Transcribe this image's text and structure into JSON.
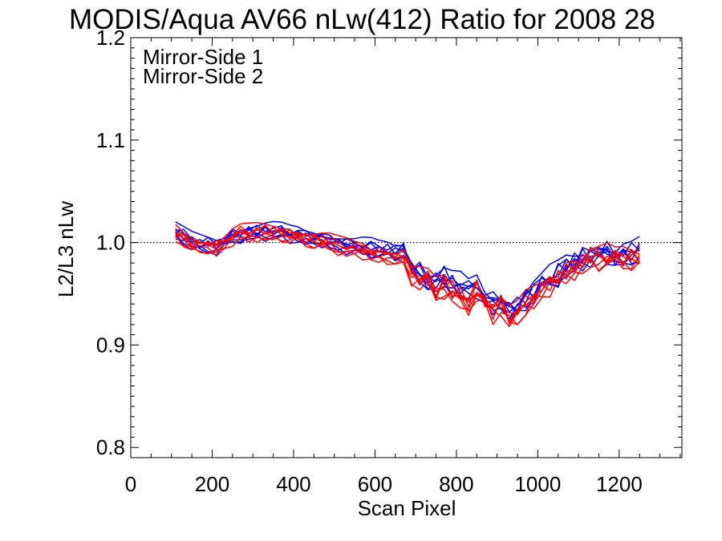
{
  "chart_data": {
    "type": "line",
    "title": "MODIS/Aqua AV66 nLw(412) Ratio for 2008 28",
    "xlabel": "Scan Pixel",
    "ylabel": "L2/L3 nLw",
    "xlim": [
      0,
      1354
    ],
    "ylim": [
      0.79,
      1.2
    ],
    "x_ticks": [
      0,
      200,
      400,
      600,
      800,
      1000,
      1200
    ],
    "x_tick_labels": [
      "0",
      "200",
      "400",
      "600",
      "800",
      "1000",
      "1200"
    ],
    "y_ticks": [
      0.8,
      0.9,
      1.0,
      1.1,
      1.2
    ],
    "y_tick_labels": [
      "0.8",
      "0.9",
      "1.0",
      "1.1",
      "1.2"
    ],
    "reference_line": 1.0,
    "legend_position": "top-left",
    "colors": {
      "ms1": "#0000ff",
      "ms2": "#ff0000",
      "axis": "#000000"
    },
    "x": [
      110,
      130,
      150,
      170,
      190,
      210,
      230,
      250,
      270,
      290,
      310,
      330,
      350,
      370,
      390,
      410,
      430,
      450,
      470,
      490,
      510,
      530,
      550,
      570,
      590,
      610,
      630,
      650,
      670,
      690,
      710,
      730,
      750,
      770,
      790,
      810,
      830,
      850,
      870,
      890,
      910,
      930,
      950,
      970,
      990,
      1010,
      1030,
      1050,
      1070,
      1090,
      1110,
      1130,
      1150,
      1170,
      1190,
      1210,
      1230,
      1250
    ],
    "series": [
      {
        "name": "Mirror-Side 1",
        "color": "#0000ff",
        "values": [
          1.012,
          1.006,
          1.001,
          0.999,
          0.998,
          0.997,
          1.001,
          1.006,
          1.009,
          1.01,
          1.01,
          1.011,
          1.011,
          1.01,
          1.008,
          1.008,
          1.006,
          1.006,
          1.004,
          1.002,
          1.0,
          0.998,
          0.996,
          0.996,
          0.995,
          0.993,
          0.993,
          0.991,
          0.994,
          0.976,
          0.97,
          0.966,
          0.963,
          0.966,
          0.96,
          0.958,
          0.952,
          0.959,
          0.946,
          0.942,
          0.947,
          0.934,
          0.938,
          0.946,
          0.953,
          0.958,
          0.965,
          0.97,
          0.978,
          0.981,
          0.986,
          0.988,
          0.99,
          0.991,
          0.986,
          0.99,
          0.989,
          0.992
        ]
      },
      {
        "name": "Mirror-Side 2",
        "color": "#ff0000",
        "values": [
          1.01,
          1.004,
          0.999,
          0.998,
          0.998,
          0.995,
          1.0,
          1.006,
          1.009,
          1.009,
          1.01,
          1.01,
          1.01,
          1.01,
          1.007,
          1.007,
          1.004,
          1.003,
          1.002,
          1.0,
          0.997,
          0.995,
          0.993,
          0.993,
          0.989,
          0.989,
          0.988,
          0.986,
          0.987,
          0.969,
          0.965,
          0.961,
          0.953,
          0.958,
          0.952,
          0.947,
          0.943,
          0.953,
          0.942,
          0.933,
          0.939,
          0.927,
          0.93,
          0.94,
          0.947,
          0.954,
          0.96,
          0.965,
          0.972,
          0.977,
          0.98,
          0.986,
          0.985,
          0.986,
          0.982,
          0.985,
          0.985,
          0.986
        ]
      }
    ]
  }
}
